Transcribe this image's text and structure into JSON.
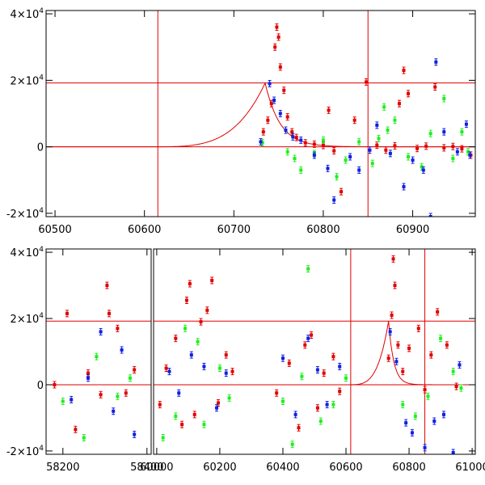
{
  "colors": {
    "axis": "#000000",
    "model": "#e00000",
    "red_band": "#e00000",
    "green_band": "#22ee22",
    "blue_band": "#1020e0"
  },
  "chart_data": [
    {
      "type": "scatter",
      "panel": "top",
      "title": "",
      "xlabel": "",
      "ylabel": "",
      "xlim": [
        60490,
        60970
      ],
      "ylim": [
        -21000,
        41000
      ],
      "segments": [
        [
          60490,
          60970
        ]
      ],
      "xticks": [
        {
          "value": 60500,
          "label": "60500"
        },
        {
          "value": 60600,
          "label": "60600"
        },
        {
          "value": 60700,
          "label": "60700"
        },
        {
          "value": 60800,
          "label": "60800"
        },
        {
          "value": 60900,
          "label": "60900"
        }
      ],
      "yticks": [
        {
          "value": 40000,
          "label": "4×10",
          "exp": "4"
        },
        {
          "value": 20000,
          "label": "2×10",
          "exp": "4"
        },
        {
          "value": 0,
          "label": "0",
          "exp": ""
        },
        {
          "value": -20000,
          "label": "-2×10",
          "exp": "4"
        }
      ],
      "hlines": [
        19200,
        0
      ],
      "vlines": [
        60615,
        60850
      ],
      "model_curve": {
        "x0": 60490,
        "x1": 60970,
        "t0": 60600,
        "peak_x": 60735,
        "peak_y": 19200,
        "rise": 0.045,
        "decay": 0.06
      },
      "series": [
        {
          "name": "red",
          "points": [
            [
              60733,
              4500
            ],
            [
              60738,
              8000
            ],
            [
              60742,
              13000
            ],
            [
              60746,
              30000
            ],
            [
              60748,
              36000
            ],
            [
              60750,
              33000
            ],
            [
              60752,
              24000
            ],
            [
              60756,
              17000
            ],
            [
              60760,
              9000
            ],
            [
              60765,
              4500
            ],
            [
              60770,
              2800
            ],
            [
              60780,
              1200
            ],
            [
              60790,
              800
            ],
            [
              60800,
              400
            ],
            [
              60806,
              11000
            ],
            [
              60812,
              -1200
            ],
            [
              60820,
              -13500
            ],
            [
              60835,
              8000
            ],
            [
              60848,
              19500
            ],
            [
              60860,
              500
            ],
            [
              60870,
              -1000
            ],
            [
              60880,
              300
            ],
            [
              60885,
              13000
            ],
            [
              60890,
              23000
            ],
            [
              60895,
              16000
            ],
            [
              60905,
              -500
            ],
            [
              60915,
              200
            ],
            [
              60925,
              18000
            ],
            [
              60935,
              -300
            ],
            [
              60945,
              100
            ],
            [
              60955,
              -600
            ],
            [
              60965,
              -2500
            ]
          ]
        },
        {
          "name": "green",
          "points": [
            [
              60732,
              1200
            ],
            [
              60760,
              -1500
            ],
            [
              60768,
              -3500
            ],
            [
              60775,
              -7000
            ],
            [
              60790,
              -2000
            ],
            [
              60800,
              2000
            ],
            [
              60815,
              -9000
            ],
            [
              60825,
              -4000
            ],
            [
              60840,
              1500
            ],
            [
              60855,
              -5000
            ],
            [
              60862,
              2500
            ],
            [
              60868,
              12000
            ],
            [
              60872,
              5000
            ],
            [
              60880,
              8000
            ],
            [
              60895,
              -3000
            ],
            [
              60910,
              -6000
            ],
            [
              60920,
              4000
            ],
            [
              60935,
              14500
            ],
            [
              60945,
              -3500
            ],
            [
              60955,
              4500
            ],
            [
              60962,
              -1500
            ]
          ]
        },
        {
          "name": "blue",
          "points": [
            [
              60730,
              1500
            ],
            [
              60740,
              19000
            ],
            [
              60745,
              14000
            ],
            [
              60752,
              10000
            ],
            [
              60758,
              5000
            ],
            [
              60766,
              3000
            ],
            [
              60775,
              2000
            ],
            [
              60790,
              -2500
            ],
            [
              60805,
              -6500
            ],
            [
              60812,
              -16000
            ],
            [
              60830,
              -3000
            ],
            [
              60840,
              -7000
            ],
            [
              60852,
              -1000
            ],
            [
              60860,
              6500
            ],
            [
              60875,
              -2000
            ],
            [
              60890,
              -12000
            ],
            [
              60900,
              -4000
            ],
            [
              60912,
              -7000
            ],
            [
              60920,
              -21000
            ],
            [
              60926,
              25500
            ],
            [
              60935,
              4500
            ],
            [
              60950,
              -1500
            ],
            [
              60960,
              6800
            ],
            [
              60964,
              -2500
            ]
          ]
        }
      ]
    },
    {
      "type": "scatter",
      "panel": "bottom",
      "title": "",
      "xlabel": "",
      "ylabel": "",
      "ylim": [
        -21000,
        41000
      ],
      "segments": [
        [
          58160,
          58410
        ],
        [
          59990,
          61010
        ]
      ],
      "xticks": [
        {
          "value": 58200,
          "label": "58200"
        },
        {
          "value": 58400,
          "label": "58400"
        },
        {
          "value": 60000,
          "label": "60000"
        },
        {
          "value": 60200,
          "label": "60200"
        },
        {
          "value": 60400,
          "label": "60400"
        },
        {
          "value": 60600,
          "label": "60600"
        },
        {
          "value": 60800,
          "label": "60800"
        },
        {
          "value": 61000,
          "label": "61000"
        }
      ],
      "yticks": [
        {
          "value": 40000,
          "label": "4×10",
          "exp": "4"
        },
        {
          "value": 20000,
          "label": "2×10",
          "exp": "4"
        },
        {
          "value": 0,
          "label": "0",
          "exp": ""
        },
        {
          "value": -20000,
          "label": "-2×10",
          "exp": "4"
        }
      ],
      "hlines": [
        19200,
        0
      ],
      "vlines": [
        60615,
        60850
      ],
      "model_curve": {
        "x0": 60360,
        "x1": 61010,
        "t0": 60600,
        "peak_x": 60735,
        "peak_y": 19200,
        "rise": 0.045,
        "decay": 0.06
      },
      "series": [
        {
          "name": "red",
          "points": [
            [
              58180,
              0
            ],
            [
              58210,
              21500
            ],
            [
              58230,
              -13500
            ],
            [
              58260,
              3500
            ],
            [
              58290,
              -3000
            ],
            [
              58305,
              30000
            ],
            [
              58310,
              21500
            ],
            [
              58330,
              17000
            ],
            [
              58350,
              -2500
            ],
            [
              58370,
              4500
            ],
            [
              60010,
              -6000
            ],
            [
              60030,
              5000
            ],
            [
              60060,
              14000
            ],
            [
              60080,
              -12000
            ],
            [
              60095,
              25500
            ],
            [
              60105,
              30500
            ],
            [
              60120,
              -9000
            ],
            [
              60140,
              19000
            ],
            [
              60160,
              22500
            ],
            [
              60175,
              31500
            ],
            [
              60195,
              -5500
            ],
            [
              60220,
              9000
            ],
            [
              60240,
              4000
            ],
            [
              60380,
              -2500
            ],
            [
              60420,
              6500
            ],
            [
              60450,
              -13000
            ],
            [
              60470,
              12000
            ],
            [
              60490,
              15000
            ],
            [
              60510,
              -7000
            ],
            [
              60530,
              3500
            ],
            [
              60560,
              8500
            ],
            [
              60580,
              -2000
            ],
            [
              60735,
              8000
            ],
            [
              60745,
              21000
            ],
            [
              60750,
              38000
            ],
            [
              60755,
              30000
            ],
            [
              60765,
              12000
            ],
            [
              60780,
              4000
            ],
            [
              60800,
              11000
            ],
            [
              60830,
              17000
            ],
            [
              60850,
              -1500
            ],
            [
              60870,
              9000
            ],
            [
              60890,
              22000
            ],
            [
              60920,
              12000
            ],
            [
              60950,
              -500
            ]
          ]
        },
        {
          "name": "green",
          "points": [
            [
              58200,
              -5000
            ],
            [
              58250,
              -16000
            ],
            [
              58280,
              8500
            ],
            [
              58330,
              -3500
            ],
            [
              58360,
              2000
            ],
            [
              60020,
              -16000
            ],
            [
              60060,
              -9500
            ],
            [
              60090,
              17000
            ],
            [
              60130,
              13000
            ],
            [
              60150,
              -12000
            ],
            [
              60200,
              5000
            ],
            [
              60230,
              -4000
            ],
            [
              60400,
              -5000
            ],
            [
              60430,
              -18000
            ],
            [
              60460,
              2500
            ],
            [
              60480,
              35000
            ],
            [
              60520,
              -11000
            ],
            [
              60560,
              -6000
            ],
            [
              60600,
              2000
            ],
            [
              60780,
              -6000
            ],
            [
              60820,
              -9500
            ],
            [
              60860,
              -3500
            ],
            [
              60900,
              14000
            ],
            [
              60940,
              4000
            ],
            [
              60965,
              -1000
            ]
          ]
        },
        {
          "name": "blue",
          "points": [
            [
              58220,
              -4500
            ],
            [
              58260,
              2000
            ],
            [
              58290,
              16000
            ],
            [
              58320,
              -8000
            ],
            [
              58340,
              10500
            ],
            [
              58370,
              -15000
            ],
            [
              60040,
              4000
            ],
            [
              60070,
              -2500
            ],
            [
              60110,
              9000
            ],
            [
              60150,
              5500
            ],
            [
              60190,
              -7000
            ],
            [
              60220,
              3500
            ],
            [
              60400,
              8000
            ],
            [
              60440,
              -9000
            ],
            [
              60480,
              14000
            ],
            [
              60510,
              4500
            ],
            [
              60540,
              -6000
            ],
            [
              60580,
              5500
            ],
            [
              60740,
              16000
            ],
            [
              60760,
              7000
            ],
            [
              60790,
              -11500
            ],
            [
              60810,
              -14500
            ],
            [
              60850,
              -19000
            ],
            [
              60880,
              -11000
            ],
            [
              60910,
              -9000
            ],
            [
              60940,
              -20500
            ],
            [
              60960,
              6000
            ]
          ]
        }
      ]
    }
  ]
}
